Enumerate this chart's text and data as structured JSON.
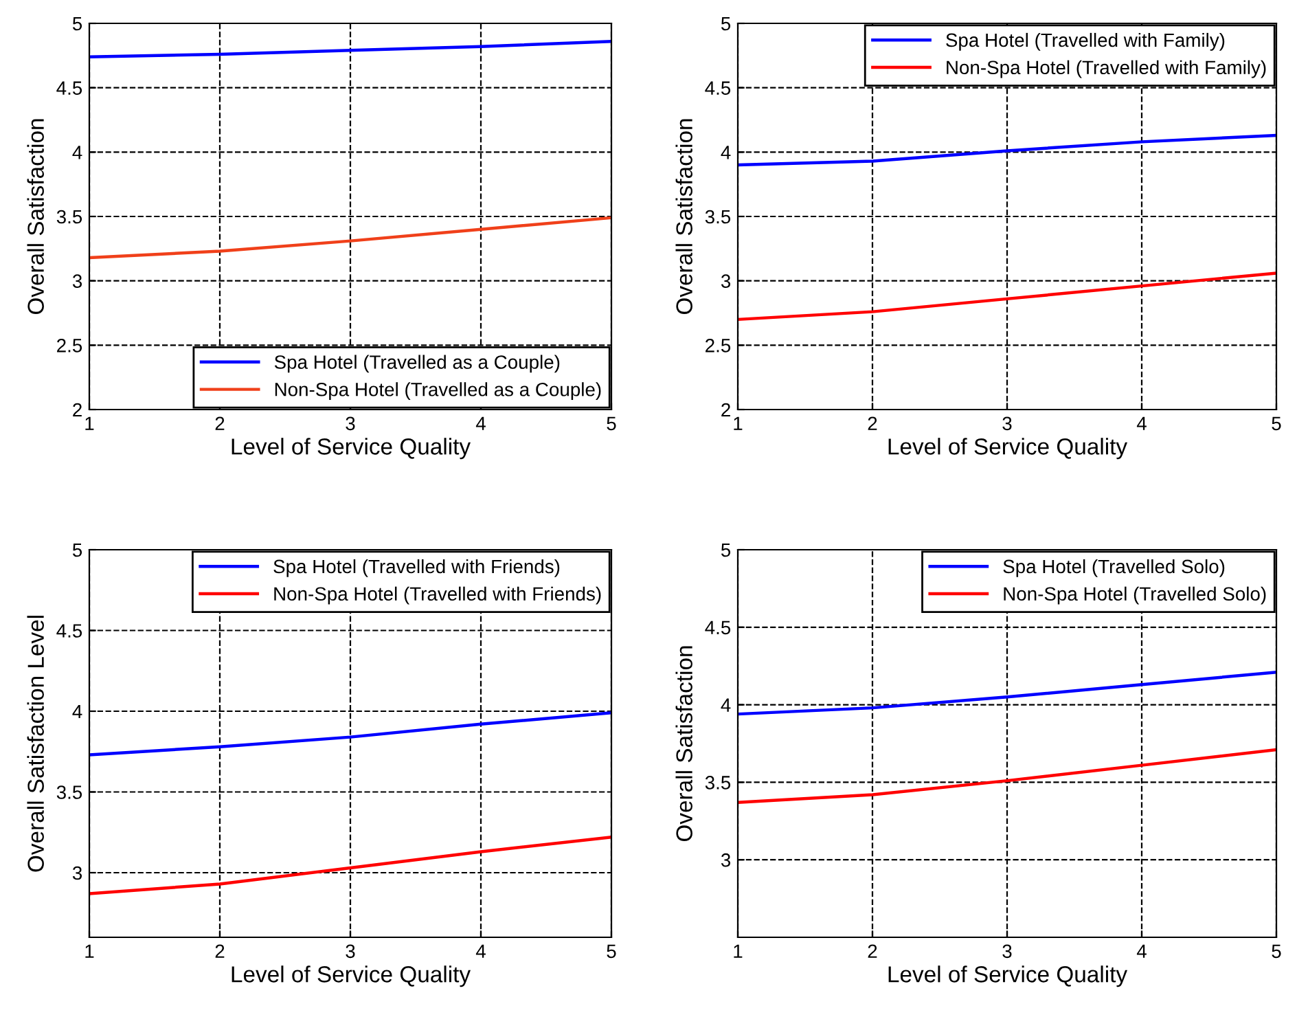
{
  "chart_data": [
    {
      "type": "line",
      "xlabel": "Level of Service Quality",
      "ylabel": "Overall Satisfaction",
      "x": [
        1,
        2,
        3,
        4,
        5
      ],
      "xlim": [
        1,
        5
      ],
      "ylim": [
        2,
        5
      ],
      "xticks": [
        1,
        2,
        3,
        4,
        5
      ],
      "yticks": [
        2,
        2.5,
        3,
        3.5,
        4,
        4.5,
        5
      ],
      "grid": true,
      "legend": "bottom right",
      "series": [
        {
          "name": "Spa Hotel (Travelled as a Couple)",
          "color": "#0000ff",
          "values": [
            4.74,
            4.76,
            4.79,
            4.82,
            4.86
          ]
        },
        {
          "name": "Non-Spa Hotel (Travelled as a Couple)",
          "color": "#f0401a",
          "values": [
            3.18,
            3.23,
            3.31,
            3.4,
            3.49
          ]
        }
      ]
    },
    {
      "type": "line",
      "xlabel": "Level of Service Quality",
      "ylabel": "Overall Satisfaction",
      "x": [
        1,
        2,
        3,
        4,
        5
      ],
      "xlim": [
        1,
        5
      ],
      "ylim": [
        2,
        5
      ],
      "xticks": [
        1,
        2,
        3,
        4,
        5
      ],
      "yticks": [
        2,
        2.5,
        3,
        3.5,
        4,
        4.5,
        5
      ],
      "grid": true,
      "legend": "top right",
      "series": [
        {
          "name": "Spa Hotel (Travelled with Family)",
          "color": "#0000ff",
          "values": [
            3.9,
            3.93,
            4.01,
            4.08,
            4.13
          ]
        },
        {
          "name": "Non-Spa Hotel (Travelled with Family)",
          "color": "#ff0000",
          "values": [
            2.7,
            2.76,
            2.86,
            2.96,
            3.06
          ]
        }
      ]
    },
    {
      "type": "line",
      "xlabel": "Level of Service Quality",
      "ylabel": "Overall Satisfaction Level",
      "x": [
        1,
        2,
        3,
        4,
        5
      ],
      "xlim": [
        1,
        5
      ],
      "ylim": [
        2.6,
        5
      ],
      "xticks": [
        1,
        2,
        3,
        4,
        5
      ],
      "yticks": [
        3,
        3.5,
        4,
        4.5,
        5
      ],
      "grid": true,
      "legend": "top right",
      "series": [
        {
          "name": "Spa Hotel (Travelled with Friends)",
          "color": "#0000ff",
          "values": [
            3.73,
            3.78,
            3.84,
            3.92,
            3.99
          ]
        },
        {
          "name": "Non-Spa Hotel (Travelled with Friends)",
          "color": "#ff0000",
          "values": [
            2.87,
            2.93,
            3.03,
            3.13,
            3.22
          ]
        }
      ]
    },
    {
      "type": "line",
      "xlabel": "Level of Service Quality",
      "ylabel": "Overall Satisfaction",
      "x": [
        1,
        2,
        3,
        4,
        5
      ],
      "xlim": [
        1,
        5
      ],
      "ylim": [
        2.5,
        5
      ],
      "xticks": [
        1,
        2,
        3,
        4,
        5
      ],
      "yticks": [
        3,
        3.5,
        4,
        4.5,
        5
      ],
      "grid": true,
      "legend": "top right",
      "series": [
        {
          "name": "Spa Hotel (Travelled Solo)",
          "color": "#0000ff",
          "values": [
            3.94,
            3.98,
            4.05,
            4.13,
            4.21
          ]
        },
        {
          "name": "Non-Spa Hotel (Travelled Solo)",
          "color": "#ff0000",
          "values": [
            3.37,
            3.42,
            3.51,
            3.61,
            3.71
          ]
        }
      ]
    }
  ]
}
